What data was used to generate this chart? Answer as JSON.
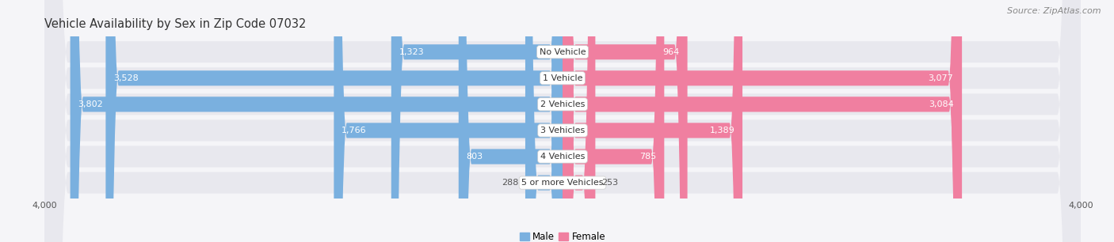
{
  "title": "Vehicle Availability by Sex in Zip Code 07032",
  "source": "Source: ZipAtlas.com",
  "categories": [
    "No Vehicle",
    "1 Vehicle",
    "2 Vehicles",
    "3 Vehicles",
    "4 Vehicles",
    "5 or more Vehicles"
  ],
  "male_values": [
    1323,
    3528,
    3802,
    1766,
    803,
    288
  ],
  "female_values": [
    964,
    3077,
    3084,
    1389,
    785,
    253
  ],
  "male_color": "#7ab0df",
  "female_color": "#f07fa0",
  "row_bg_color": "#e8e8ee",
  "fig_bg_color": "#f5f5f8",
  "xlim": 4000,
  "title_fontsize": 10.5,
  "source_fontsize": 8,
  "label_fontsize": 8,
  "category_fontsize": 8,
  "legend_fontsize": 8.5,
  "axis_label_fontsize": 8
}
